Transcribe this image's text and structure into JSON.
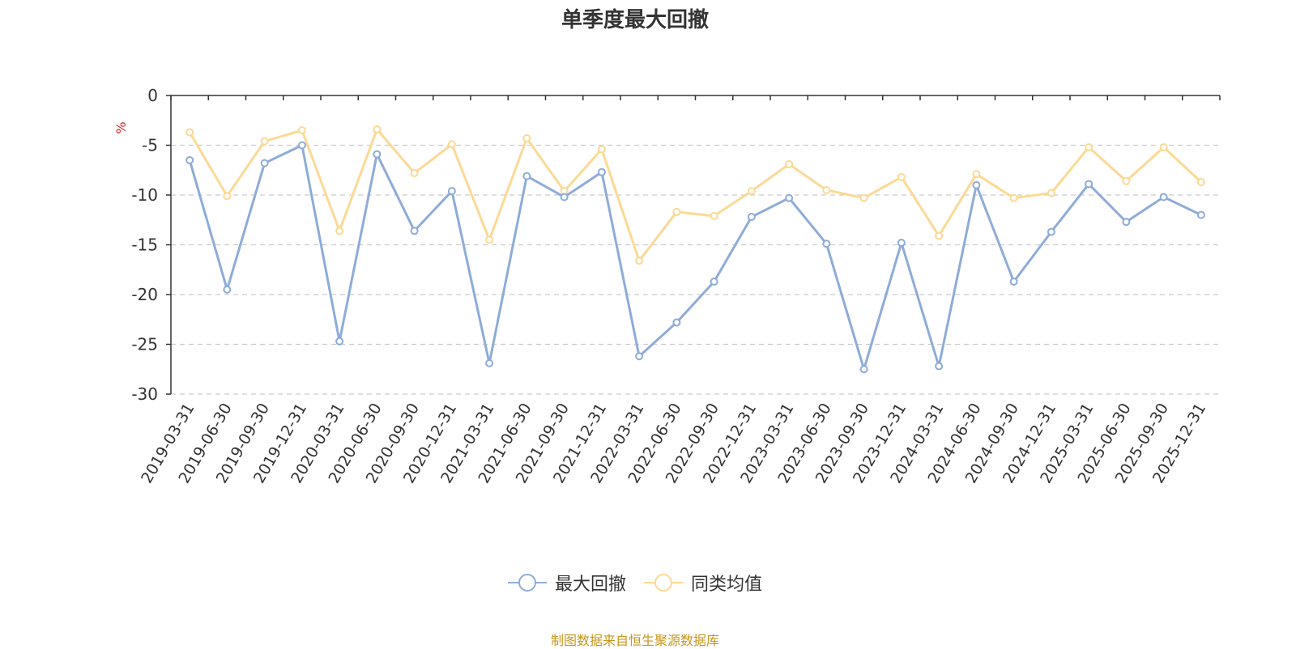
{
  "chart_data": {
    "type": "line",
    "title": "单季度最大回撤",
    "ylabel": "%",
    "ylim": [
      -30,
      0
    ],
    "yticks": [
      0,
      -5,
      -10,
      -15,
      -20,
      -25,
      -30
    ],
    "grid": true,
    "legend_position": "bottom",
    "categories": [
      "2019-03-31",
      "2019-06-30",
      "2019-09-30",
      "2019-12-31",
      "2020-03-31",
      "2020-06-30",
      "2020-09-30",
      "2020-12-31",
      "2021-03-31",
      "2021-06-30",
      "2021-09-30",
      "2021-12-31",
      "2022-03-31",
      "2022-06-30",
      "2022-09-30",
      "2022-12-31",
      "2023-03-31",
      "2023-06-30",
      "2023-09-30",
      "2023-12-31",
      "2024-03-31",
      "2024-06-30",
      "2024-09-30",
      "2024-12-31",
      "2025-03-31",
      "2025-06-30",
      "2025-09-30",
      "2025-12-31"
    ],
    "series": [
      {
        "name": "最大回撤",
        "color": "#8eacd8",
        "values": [
          -6.5,
          -19.5,
          -6.8,
          -5.0,
          -24.7,
          -5.9,
          -13.6,
          -9.6,
          -26.9,
          -8.1,
          -10.2,
          -7.7,
          -26.2,
          -22.8,
          -18.7,
          -12.2,
          -10.3,
          -14.9,
          -27.5,
          -14.8,
          -27.2,
          -9.0,
          -18.7,
          -13.7,
          -8.9,
          -12.7,
          -10.2,
          -12.0
        ]
      },
      {
        "name": "同类均值",
        "color": "#fcd995",
        "values": [
          -3.7,
          -10.1,
          -4.6,
          -3.5,
          -13.6,
          -3.4,
          -7.8,
          -4.9,
          -14.5,
          -4.3,
          -9.6,
          -5.4,
          -16.6,
          -11.7,
          -12.1,
          -9.6,
          -6.9,
          -9.5,
          -10.3,
          -8.2,
          -14.1,
          -7.9,
          -10.3,
          -9.8,
          -5.2,
          -8.6,
          -5.2,
          -8.7
        ]
      }
    ]
  },
  "source_text": "制图数据来自恒生聚源数据库"
}
